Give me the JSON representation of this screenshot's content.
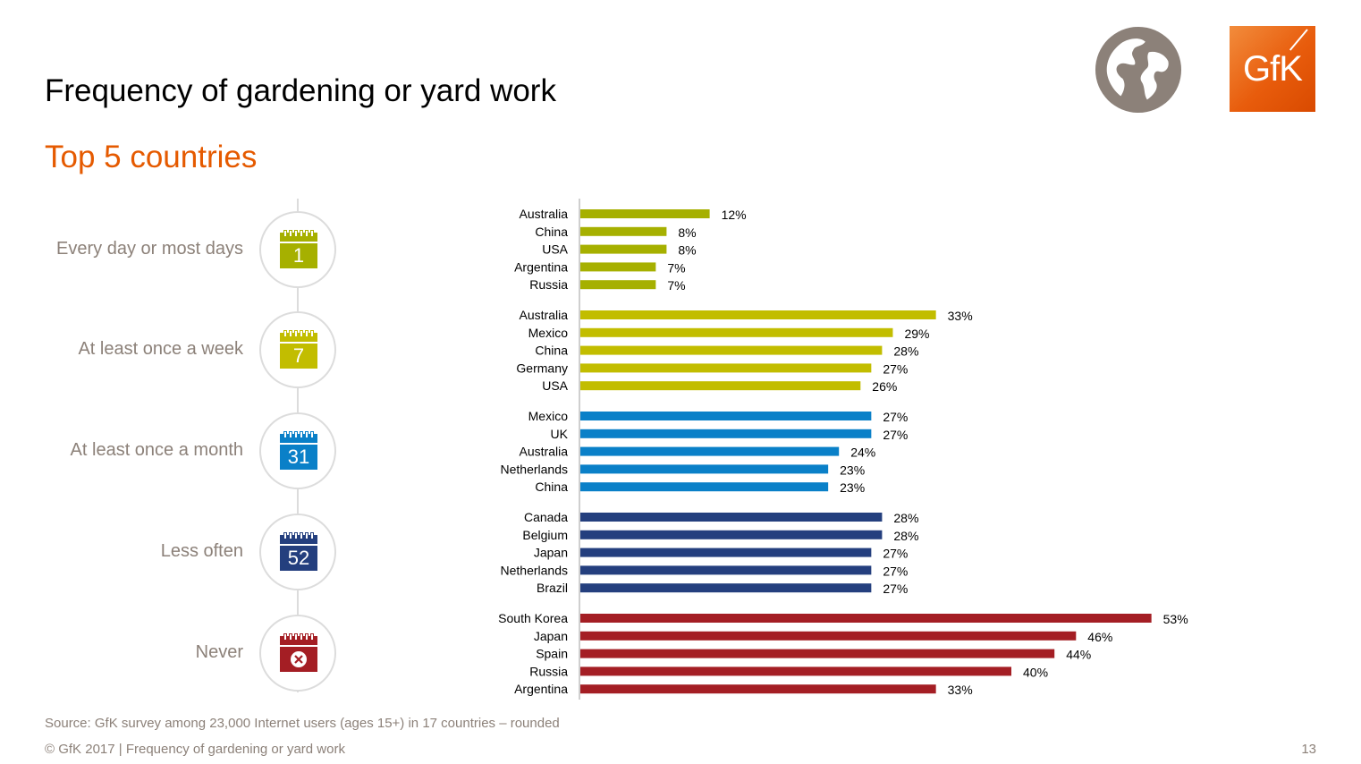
{
  "header": {
    "title": "Frequency of gardening or yard work",
    "subtitle": "Top 5 countries"
  },
  "logo": {
    "text": "GfK"
  },
  "icons": {
    "globe": "globe-icon",
    "calendar": "calendar-icon"
  },
  "timeline": [
    {
      "label": "Every day or most days",
      "icon_text": "1",
      "color": "#a6b000"
    },
    {
      "label": "At least once a week",
      "icon_text": "7",
      "color": "#c2bd00"
    },
    {
      "label": "At least once a month",
      "icon_text": "31",
      "color": "#0a80c8"
    },
    {
      "label": "Less often",
      "icon_text": "52",
      "color": "#243f7e"
    },
    {
      "label": "Never",
      "icon_text": "",
      "icon": "x-icon",
      "color": "#a41e24"
    }
  ],
  "chart_data": {
    "type": "bar",
    "orientation": "horizontal",
    "unit": "%",
    "xlim": [
      0,
      60
    ],
    "grid": false,
    "groups": [
      {
        "name": "Every day or most days",
        "color": "#a6b000",
        "categories": [
          "Australia",
          "China",
          "USA",
          "Argentina",
          "Russia"
        ],
        "values": [
          12,
          8,
          8,
          7,
          7
        ]
      },
      {
        "name": "At least once a week",
        "color": "#c2bd00",
        "categories": [
          "Australia",
          "Mexico",
          "China",
          "Germany",
          "USA"
        ],
        "values": [
          33,
          29,
          28,
          27,
          26
        ]
      },
      {
        "name": "At least once a month",
        "color": "#0a80c8",
        "categories": [
          "Mexico",
          "UK",
          "Australia",
          "Netherlands",
          "China"
        ],
        "values": [
          27,
          27,
          24,
          23,
          23
        ]
      },
      {
        "name": "Less often",
        "color": "#243f7e",
        "categories": [
          "Canada",
          "Belgium",
          "Japan",
          "Netherlands",
          "Brazil"
        ],
        "values": [
          28,
          28,
          27,
          27,
          27
        ]
      },
      {
        "name": "Never",
        "color": "#a41e24",
        "categories": [
          "South Korea",
          "Japan",
          "Spain",
          "Russia",
          "Argentina"
        ],
        "values": [
          53,
          46,
          44,
          40,
          33
        ]
      }
    ]
  },
  "footer": {
    "source": "Source: GfK survey among 23,000 Internet users (ages 15+) in 17 countries – rounded",
    "copyright": "© GfK 2017 | Frequency of gardening or yard work",
    "page": "13"
  }
}
